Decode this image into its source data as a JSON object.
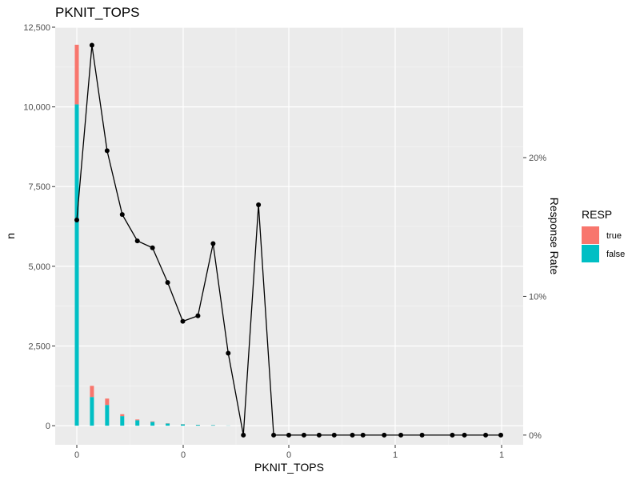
{
  "chart_data": {
    "type": "bar+line",
    "title": "PKNIT_TOPS",
    "xlabel": "PKNIT_TOPS",
    "ylabel": "n",
    "y2label": "Response Rate",
    "x_tick_labels": [
      "0",
      "0",
      "0",
      "1",
      "1"
    ],
    "y_tick_labels": [
      "0",
      "2,500",
      "5,000",
      "7,500",
      "10,000",
      "12,500"
    ],
    "y_ticks": [
      0,
      2500,
      5000,
      7500,
      10000,
      12500
    ],
    "ylim": [
      -600,
      12500
    ],
    "y2_tick_labels": [
      "0%",
      "10%",
      "20%"
    ],
    "y2_ticks": [
      0,
      0.1,
      0.2
    ],
    "ylim2": [
      -0.007,
      0.294
    ],
    "grid": true,
    "legend": {
      "title": "RESP",
      "position": "right",
      "entries": [
        {
          "label": "true",
          "color": "#F8766D"
        },
        {
          "label": "false",
          "color": "#00BFC4"
        }
      ]
    },
    "bars": {
      "series": [
        {
          "name": "false",
          "color": "#00BFC4",
          "x": [
            0,
            0.0714,
            0.1429,
            0.2143,
            0.2857,
            0.3571,
            0.4286,
            0.5,
            0.5714,
            0.6429,
            0.7143
          ],
          "values": [
            10080,
            900,
            650,
            300,
            170,
            120,
            65,
            40,
            25,
            15,
            5
          ]
        },
        {
          "name": "true",
          "color": "#F8766D",
          "x": [
            0,
            0.0714,
            0.1429,
            0.2143,
            0.2857,
            0.3571,
            0.4286,
            0.5,
            0.5714,
            0.6429,
            0.7143
          ],
          "values": [
            1870,
            350,
            200,
            60,
            25,
            15,
            8,
            5,
            3,
            2,
            1
          ]
        }
      ]
    },
    "line": {
      "color": "#000000",
      "x": [
        0,
        0.0714,
        0.1429,
        0.2143,
        0.2857,
        0.3571,
        0.4286,
        0.5,
        0.5714,
        0.6429,
        0.7143,
        0.7857,
        0.8571,
        0.9286,
        1.0,
        1.0714,
        1.1429,
        1.2143,
        1.3,
        1.35,
        1.45,
        1.5286,
        1.6286,
        1.7714,
        1.8286,
        1.9286,
        2.0
      ],
      "values": [
        0.155,
        0.281,
        0.205,
        0.159,
        0.14,
        0.135,
        0.11,
        0.082,
        0.086,
        0.138,
        0.059,
        0.0,
        0.166,
        0.0,
        0.0,
        0.0,
        0.0,
        0.0,
        0.0,
        0.0,
        0.0,
        0.0,
        0.0,
        0.0,
        0.0,
        0.0,
        0.0
      ]
    }
  }
}
